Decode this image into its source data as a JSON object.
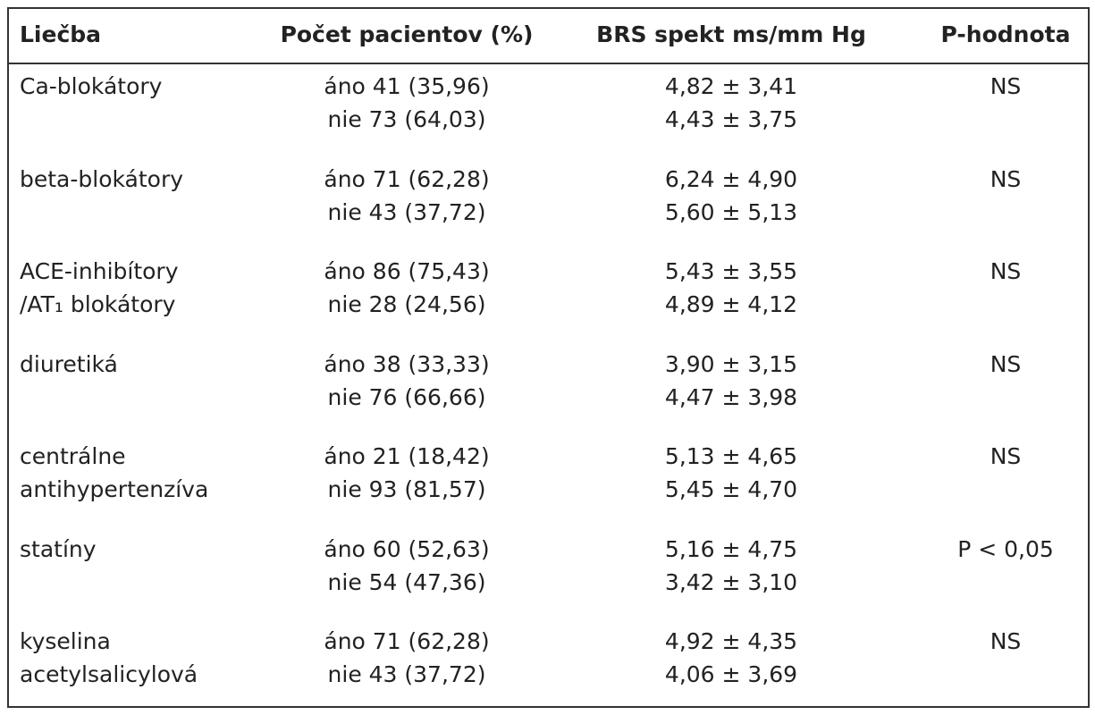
{
  "table": {
    "header": [
      "Liečba",
      "Počet pacientov (%)",
      "BRS spekt ms/mm Hg",
      "P-hodnota"
    ],
    "groups": [
      {
        "label": [
          "Ca-blokátory"
        ],
        "rows": [
          [
            "áno 41 (35,96)",
            "4,82 ± 3,41"
          ],
          [
            "nie 73 (64,03)",
            "4,43 ± 3,75"
          ]
        ],
        "p": "NS"
      },
      {
        "label": [
          "beta-blokátory"
        ],
        "rows": [
          [
            "áno 71 (62,28)",
            "6,24 ± 4,90"
          ],
          [
            "nie 43 (37,72)",
            "5,60 ± 5,13"
          ]
        ],
        "p": "NS"
      },
      {
        "label": [
          "ACE-inhibítory",
          "/AT₁ blokátory"
        ],
        "rows": [
          [
            "áno 86 (75,43)",
            "5,43 ± 3,55"
          ],
          [
            "nie 28 (24,56)",
            "4,89 ± 4,12"
          ]
        ],
        "p": "NS"
      },
      {
        "label": [
          "diuretiká"
        ],
        "rows": [
          [
            "áno 38 (33,33)",
            "3,90 ± 3,15"
          ],
          [
            "nie 76 (66,66)",
            "4,47 ± 3,98"
          ]
        ],
        "p": "NS"
      },
      {
        "label": [
          "centrálne",
          "antihypertenzíva"
        ],
        "rows": [
          [
            "áno 21 (18,42)",
            "5,13 ± 4,65"
          ],
          [
            "nie 93 (81,57)",
            "5,45 ± 4,70"
          ]
        ],
        "p": "NS"
      },
      {
        "label": [
          "statíny"
        ],
        "rows": [
          [
            "áno 60 (52,63)",
            "5,16 ± 4,75"
          ],
          [
            "nie 54 (47,36)",
            "3,42 ± 3,10"
          ]
        ],
        "p": "P < 0,05"
      },
      {
        "label": [
          "kyselina",
          "acetylsalicylová"
        ],
        "rows": [
          [
            "áno 71 (62,28)",
            "4,92 ± 4,35"
          ],
          [
            "nie 43 (37,72)",
            "4,06 ± 3,69"
          ]
        ],
        "p": "NS"
      }
    ]
  }
}
